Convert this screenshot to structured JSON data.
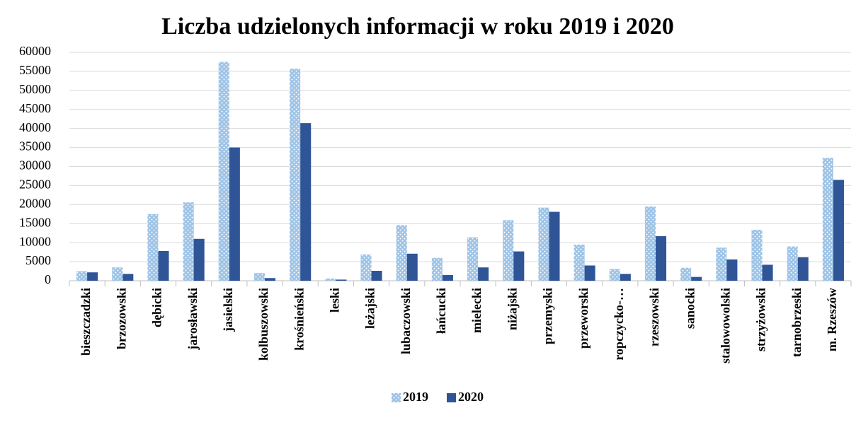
{
  "chart_data": {
    "type": "bar",
    "title": "Liczba udzielonych informacji w roku 2019 i 2020",
    "categories": [
      "bieszczadzki",
      "brzozowski",
      "dębicki",
      "jarosławski",
      "jasielski",
      "kolbuszowski",
      "krośnieński",
      "leski",
      "leżajski",
      "lubaczowski",
      "łańcucki",
      "mielecki",
      "niżajski",
      "przemyski",
      "przeworski",
      "ropczycko-…",
      "rzeszowski",
      "sanocki",
      "stalowowolski",
      "strzyżowski",
      "tarnobrzeski",
      "m. Rzeszów"
    ],
    "series": [
      {
        "name": "2019",
        "color": "#9dc3e6",
        "values": [
          2500,
          3500,
          17500,
          20600,
          57500,
          2000,
          55700,
          600,
          6900,
          14600,
          6000,
          11400,
          15900,
          19200,
          9500,
          3100,
          19500,
          3400,
          8700,
          13400,
          9000,
          32300
        ]
      },
      {
        "name": "2020",
        "color": "#2f5597",
        "values": [
          2200,
          1800,
          7800,
          11000,
          35000,
          700,
          41400,
          300,
          2600,
          7100,
          1500,
          3500,
          7700,
          18100,
          4000,
          1800,
          11700,
          1000,
          5600,
          4200,
          6200,
          26500
        ]
      }
    ],
    "ylim": [
      0,
      60000
    ],
    "yticks": [
      0,
      5000,
      10000,
      15000,
      20000,
      25000,
      30000,
      35000,
      40000,
      45000,
      50000,
      55000,
      60000
    ],
    "grid": true,
    "legend": "bottom"
  }
}
